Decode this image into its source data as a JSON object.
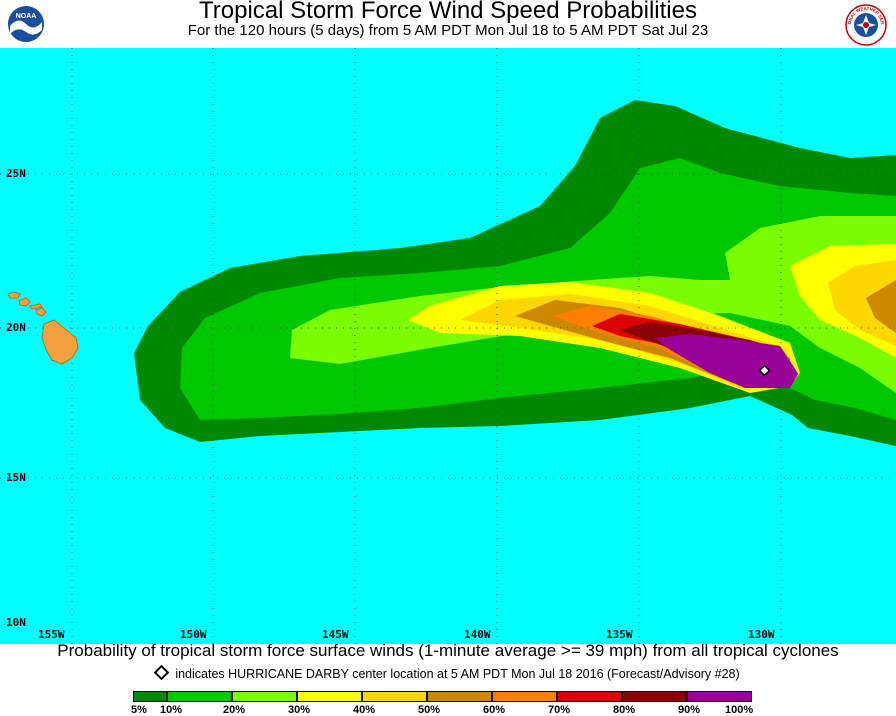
{
  "header": {
    "title": "Tropical Storm Force Wind Speed Probabilities",
    "subtitle": "For the 120 hours (5 days) from 5 AM PDT Mon Jul 18 to 5 AM PDT Sat Jul 23",
    "left_logo_text": "NOAA",
    "right_logo_text": "NATIONAL WEATHER SERVICE"
  },
  "axes": {
    "latitudes": [
      "25N",
      "20N",
      "15N",
      "10N"
    ],
    "longitudes": [
      "155W",
      "150W",
      "145W",
      "140W",
      "135W",
      "130W"
    ]
  },
  "caption": "Probability of tropical storm force surface winds (1-minute average >= 39 mph) from all tropical cyclones",
  "center_note": "indicates HURRICANE DARBY center location at 5 AM PDT Mon Jul 18 2016 (Forecast/Advisory #28)",
  "legend": {
    "labels": [
      "5%",
      "10%",
      "20%",
      "30%",
      "40%",
      "50%",
      "60%",
      "70%",
      "80%",
      "90%",
      "100%"
    ],
    "colors": [
      "#008800",
      "#00c800",
      "#7cfc00",
      "#ffff00",
      "#ffd700",
      "#cc8800",
      "#ff8000",
      "#dd0000",
      "#8b0000",
      "#990099"
    ]
  },
  "map_colors": {
    "ocean": "#00ffff",
    "land": "#f4a040"
  }
}
